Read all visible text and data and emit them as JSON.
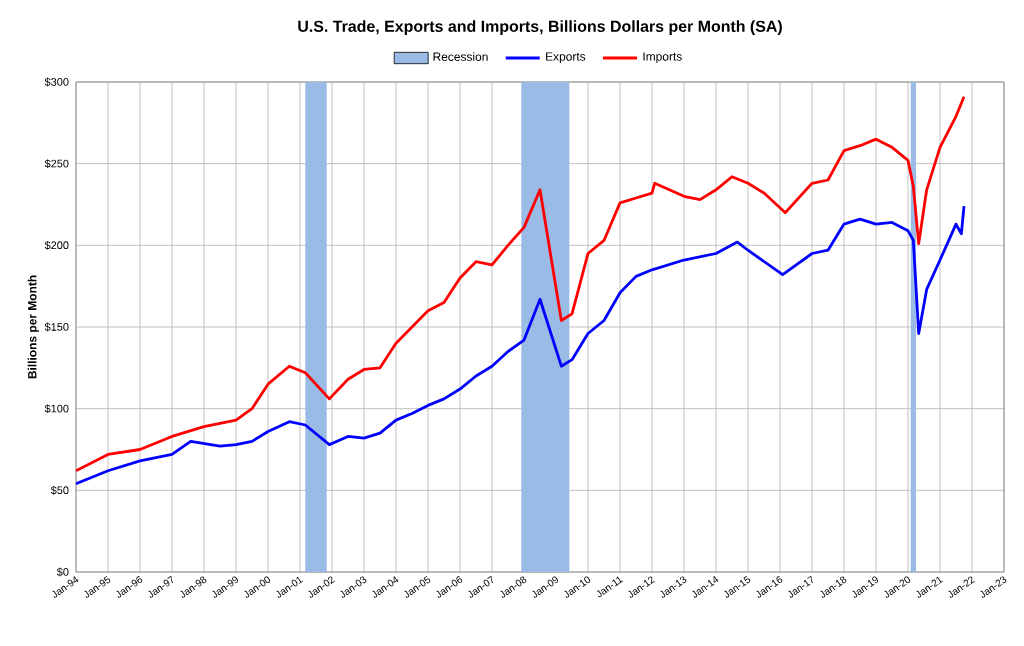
{
  "chart_data": {
    "type": "line",
    "title": "U.S. Trade, Exports and Imports, Billions Dollars per Month (SA)",
    "ylabel": "Billions per Month",
    "xlim": [
      "1994-01",
      "2023-01"
    ],
    "xticks": [
      {
        "value": "1994-01",
        "label": "Jan-94"
      },
      {
        "value": "1995-01",
        "label": "Jan-95"
      },
      {
        "value": "1996-01",
        "label": "Jan-96"
      },
      {
        "value": "1997-01",
        "label": "Jan-97"
      },
      {
        "value": "1998-01",
        "label": "Jan-98"
      },
      {
        "value": "1999-01",
        "label": "Jan-99"
      },
      {
        "value": "2000-01",
        "label": "Jan-00"
      },
      {
        "value": "2001-01",
        "label": "Jan-01"
      },
      {
        "value": "2002-01",
        "label": "Jan-02"
      },
      {
        "value": "2003-01",
        "label": "Jan-03"
      },
      {
        "value": "2004-01",
        "label": "Jan-04"
      },
      {
        "value": "2005-01",
        "label": "Jan-05"
      },
      {
        "value": "2006-01",
        "label": "Jan-06"
      },
      {
        "value": "2007-01",
        "label": "Jan-07"
      },
      {
        "value": "2008-01",
        "label": "Jan-08"
      },
      {
        "value": "2009-01",
        "label": "Jan-09"
      },
      {
        "value": "2010-01",
        "label": "Jan-10"
      },
      {
        "value": "2011-01",
        "label": "Jan-11"
      },
      {
        "value": "2012-01",
        "label": "Jan-12"
      },
      {
        "value": "2013-01",
        "label": "Jan-13"
      },
      {
        "value": "2014-01",
        "label": "Jan-14"
      },
      {
        "value": "2015-01",
        "label": "Jan-15"
      },
      {
        "value": "2016-01",
        "label": "Jan-16"
      },
      {
        "value": "2017-01",
        "label": "Jan-17"
      },
      {
        "value": "2018-01",
        "label": "Jan-18"
      },
      {
        "value": "2019-01",
        "label": "Jan-19"
      },
      {
        "value": "2020-01",
        "label": "Jan-20"
      },
      {
        "value": "2021-01",
        "label": "Jan-21"
      },
      {
        "value": "2022-01",
        "label": "Jan-22"
      },
      {
        "value": "2023-01",
        "label": "Jan-23"
      }
    ],
    "ylim": [
      0,
      300
    ],
    "yticks": [
      {
        "value": 0,
        "label": "$0"
      },
      {
        "value": 50,
        "label": "$50"
      },
      {
        "value": 100,
        "label": "$100"
      },
      {
        "value": 150,
        "label": "$150"
      },
      {
        "value": 200,
        "label": "$200"
      },
      {
        "value": 250,
        "label": "$250"
      },
      {
        "value": 300,
        "label": "$300"
      }
    ],
    "grid": true,
    "legend": "top",
    "marker": "none",
    "line_style": "solid",
    "bands": [
      {
        "axis": "x",
        "from": "2001-03",
        "to": "2001-11",
        "label": "Recession",
        "color": "#99bbe6"
      },
      {
        "axis": "x",
        "from": "2007-12",
        "to": "2009-06",
        "color": "#99bbe6"
      },
      {
        "axis": "x",
        "from": "2020-02",
        "to": "2020-04",
        "color": "#99bbe6"
      }
    ],
    "series": [
      {
        "name": "Exports",
        "color": "#0000ff",
        "x": [
          "1994-01",
          "1995-01",
          "1996-01",
          "1997-01",
          "1997-08",
          "1998-07",
          "1999-01",
          "1999-07",
          "2000-01",
          "2000-09",
          "2001-03",
          "2001-12",
          "2002-07",
          "2003-01",
          "2003-07",
          "2004-01",
          "2004-07",
          "2005-01",
          "2005-07",
          "2006-01",
          "2006-07",
          "2007-01",
          "2007-07",
          "2008-01",
          "2008-07",
          "2009-03",
          "2009-07",
          "2010-01",
          "2010-07",
          "2011-01",
          "2011-07",
          "2012-01",
          "2013-01",
          "2014-01",
          "2014-09",
          "2015-01",
          "2016-02",
          "2017-01",
          "2017-07",
          "2018-01",
          "2018-07",
          "2019-01",
          "2019-07",
          "2020-01",
          "2020-03",
          "2020-05",
          "2020-08",
          "2021-01",
          "2021-07",
          "2021-09",
          "2021-10"
        ],
        "values": [
          54,
          62,
          68,
          72,
          80,
          77,
          78,
          80,
          86,
          92,
          90,
          78,
          83,
          82,
          85,
          93,
          97,
          102,
          106,
          112,
          120,
          126,
          135,
          142,
          167,
          126,
          130,
          146,
          154,
          171,
          181,
          185,
          191,
          195,
          202,
          197,
          182,
          195,
          197,
          213,
          216,
          213,
          214,
          209,
          203,
          146,
          173,
          191,
          213,
          207,
          224
        ]
      },
      {
        "name": "Imports",
        "color": "#ff0000",
        "x": [
          "1994-01",
          "1995-01",
          "1996-01",
          "1997-01",
          "1998-01",
          "1999-01",
          "1999-07",
          "2000-01",
          "2000-09",
          "2001-03",
          "2001-12",
          "2002-07",
          "2003-01",
          "2003-07",
          "2004-01",
          "2004-07",
          "2005-01",
          "2005-07",
          "2006-01",
          "2006-07",
          "2007-01",
          "2007-07",
          "2008-01",
          "2008-07",
          "2009-03",
          "2009-07",
          "2010-01",
          "2010-07",
          "2011-01",
          "2011-07",
          "2012-01",
          "2012-02",
          "2013-01",
          "2013-07",
          "2014-01",
          "2014-07",
          "2015-01",
          "2015-07",
          "2016-03",
          "2017-01",
          "2017-07",
          "2018-01",
          "2018-07",
          "2019-01",
          "2019-07",
          "2020-01",
          "2020-03",
          "2020-05",
          "2020-08",
          "2021-01",
          "2021-07",
          "2021-10"
        ],
        "values": [
          62,
          72,
          75,
          83,
          89,
          93,
          100,
          115,
          126,
          122,
          106,
          118,
          124,
          125,
          140,
          150,
          160,
          165,
          180,
          190,
          188,
          200,
          211,
          234,
          154,
          158,
          195,
          203,
          226,
          229,
          232,
          238,
          230,
          228,
          234,
          242,
          238,
          232,
          220,
          238,
          240,
          258,
          261,
          265,
          260,
          252,
          236,
          201,
          234,
          260,
          279,
          291
        ]
      }
    ]
  }
}
